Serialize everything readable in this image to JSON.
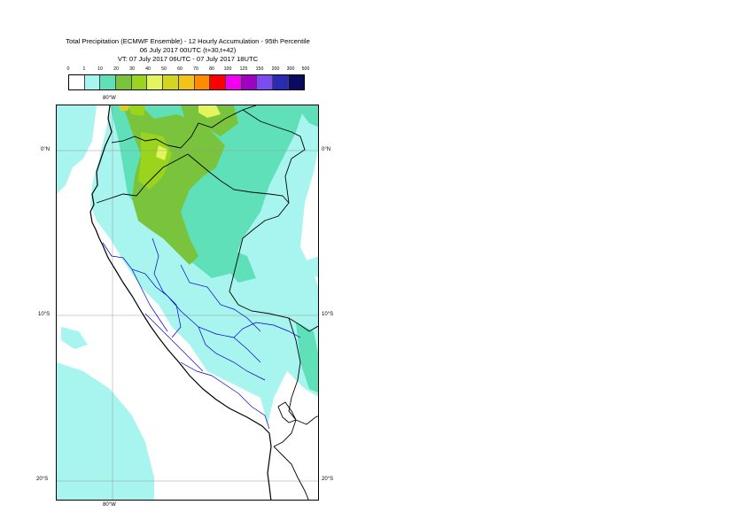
{
  "title": {
    "line1": "Total Precipitation (ECMWF Ensemble) - 12 Hourly Accumulation - 95th Percentile",
    "line2": "06 July 2017 00UTC (t+30,t+42)",
    "line3": "VT: 07 July 2017 06UTC - 07 July 2017 18UTC"
  },
  "scale": {
    "labels": [
      "0",
      "1",
      "10",
      "20",
      "30",
      "40",
      "50",
      "60",
      "70",
      "80",
      "100",
      "125",
      "150",
      "200",
      "300",
      "500"
    ],
    "colors": [
      "#ffffff",
      "#a8f4ee",
      "#5fe0b8",
      "#79c43c",
      "#9ad41c",
      "#e4f45e",
      "#d2d620",
      "#f2c419",
      "#ff8c00",
      "#ff0000",
      "#f200f2",
      "#a200c4",
      "#7a4cf2",
      "#2a2ab2",
      "#0a0a5e"
    ]
  },
  "map": {
    "lon_label_top": "80°W",
    "lon_label_bottom": "80°W",
    "lat_labels": [
      "0°N",
      "10°S",
      "20°S"
    ],
    "colors": {
      "light": "#a8f4ee",
      "medium": "#5fe0b8",
      "green": "#79c43c",
      "lime": "#9ad41c",
      "yellow": "#e4f45e",
      "gold": "#d2d620",
      "orange": "#f2c419",
      "country_border": "#000000",
      "region_border": "#0000cc",
      "grid": "#999999"
    }
  }
}
